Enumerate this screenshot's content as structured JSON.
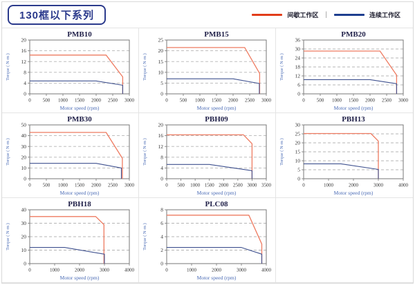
{
  "header": {
    "title": "130框以下系列"
  },
  "legend": {
    "intermittent_label": "间歇工作区",
    "separator": "|",
    "continuous_label": "连续工作区"
  },
  "colors": {
    "accent_navy": "#2b3a8c",
    "legend_red": "#e23c19",
    "legend_blue": "#1e3e8f",
    "chart_red": "#ee7b61",
    "chart_blue": "#3f518f",
    "grid_line": "#b5b5b5",
    "plot_border": "#777777",
    "tick_text": "#333333",
    "axis_label": "#4a6bb5",
    "title_text": "#22224a"
  },
  "chart_data": [
    {
      "id": "pmb10",
      "type": "line",
      "title": "PMB10",
      "xlabel": "Motor speed (rpm)",
      "ylabel": "Torque ( N·m )",
      "xlim": [
        0,
        3000
      ],
      "xticks": [
        0,
        500,
        1000,
        1500,
        2000,
        2500,
        3000
      ],
      "ylim": [
        0,
        20
      ],
      "yticks": [
        0,
        4,
        8,
        12,
        16,
        20
      ],
      "grid": "horizontal-dashed",
      "series": [
        {
          "name": "间歇工作区",
          "color_key": "chart_red",
          "points": [
            [
              0,
              14.4
            ],
            [
              2300,
              14.4
            ],
            [
              2800,
              6.3
            ],
            [
              2800,
              0
            ]
          ]
        },
        {
          "name": "连续工作区",
          "color_key": "chart_blue",
          "points": [
            [
              0,
              4.8
            ],
            [
              2000,
              4.8
            ],
            [
              2800,
              3.2
            ],
            [
              2800,
              0
            ]
          ]
        }
      ]
    },
    {
      "id": "pmb15",
      "type": "line",
      "title": "PMB15",
      "xlabel": "Motor speed (rpm)",
      "ylabel": "Torque ( N·m )",
      "xlim": [
        0,
        3000
      ],
      "xticks": [
        0,
        500,
        1000,
        1500,
        2000,
        2500,
        3000
      ],
      "ylim": [
        0,
        25
      ],
      "yticks": [
        0,
        5,
        10,
        15,
        20,
        25
      ],
      "grid": "horizontal-dashed",
      "series": [
        {
          "name": "间歇工作区",
          "color_key": "chart_red",
          "points": [
            [
              0,
              21.5
            ],
            [
              2350,
              21.5
            ],
            [
              2800,
              9.5
            ],
            [
              2800,
              0
            ]
          ]
        },
        {
          "name": "连续工作区",
          "color_key": "chart_blue",
          "points": [
            [
              0,
              7
            ],
            [
              2000,
              7
            ],
            [
              2790,
              4.8
            ],
            [
              2790,
              0
            ]
          ]
        }
      ]
    },
    {
      "id": "pmb20",
      "type": "line",
      "title": "PMB20",
      "xlabel": "Motor speed (rpm)",
      "ylabel": "Torque ( N·m )",
      "xlim": [
        0,
        3000
      ],
      "xticks": [
        0,
        500,
        1000,
        1500,
        2000,
        2500,
        3000
      ],
      "ylim": [
        0,
        36
      ],
      "yticks": [
        0,
        6,
        12,
        18,
        24,
        30,
        36
      ],
      "grid": "horizontal-dashed",
      "series": [
        {
          "name": "间歇工作区",
          "color_key": "chart_red",
          "points": [
            [
              0,
              28.6
            ],
            [
              2300,
              28.6
            ],
            [
              2800,
              12.5
            ],
            [
              2800,
              0
            ]
          ]
        },
        {
          "name": "连续工作区",
          "color_key": "chart_blue",
          "points": [
            [
              0,
              9.5
            ],
            [
              2000,
              9.5
            ],
            [
              2800,
              6.8
            ],
            [
              2800,
              0
            ]
          ]
        }
      ]
    },
    {
      "id": "pmb30",
      "type": "line",
      "title": "PMB30",
      "xlabel": "Motor speed (rpm)",
      "ylabel": "Torque ( N·m )",
      "xlim": [
        0,
        3000
      ],
      "xticks": [
        0,
        500,
        1000,
        1500,
        2000,
        2500,
        3000
      ],
      "ylim": [
        0,
        50
      ],
      "yticks": [
        0,
        10,
        20,
        30,
        40,
        50
      ],
      "grid": "horizontal-dashed",
      "series": [
        {
          "name": "间歇工作区",
          "color_key": "chart_red",
          "points": [
            [
              0,
              43
            ],
            [
              2300,
              43
            ],
            [
              2790,
              19
            ],
            [
              2790,
              0
            ]
          ]
        },
        {
          "name": "连续工作区",
          "color_key": "chart_blue",
          "points": [
            [
              0,
              14.3
            ],
            [
              2000,
              14.3
            ],
            [
              2760,
              10
            ],
            [
              2760,
              0
            ]
          ]
        }
      ]
    },
    {
      "id": "pbh09",
      "type": "line",
      "title": "PBH09",
      "xlabel": "Motor speed (rpm)",
      "ylabel": "Torque ( N·m )",
      "xlim": [
        0,
        3500
      ],
      "xticks": [
        0,
        500,
        1000,
        1500,
        2000,
        2500,
        3000,
        3500
      ],
      "ylim": [
        0,
        20
      ],
      "yticks": [
        0,
        4,
        8,
        12,
        16,
        20
      ],
      "grid": "horizontal-dashed",
      "series": [
        {
          "name": "间歇工作区",
          "color_key": "chart_red",
          "points": [
            [
              0,
              16.3
            ],
            [
              2700,
              16.3
            ],
            [
              3000,
              13
            ],
            [
              3000,
              0
            ]
          ]
        },
        {
          "name": "连续工作区",
          "color_key": "chart_blue",
          "points": [
            [
              0,
              5.3
            ],
            [
              1500,
              5.3
            ],
            [
              3000,
              3
            ],
            [
              3000,
              0
            ]
          ]
        }
      ]
    },
    {
      "id": "pbh13",
      "type": "line",
      "title": "PBH13",
      "xlabel": "Motor speed (rpm)",
      "ylabel": "Torque ( N·m )",
      "xlim": [
        0,
        4000
      ],
      "xticks": [
        0,
        1000,
        2000,
        3000,
        4000
      ],
      "ylim": [
        0,
        30
      ],
      "yticks": [
        0,
        5,
        10,
        15,
        20,
        25,
        30
      ],
      "grid": "horizontal-dashed",
      "series": [
        {
          "name": "间歇工作区",
          "color_key": "chart_red",
          "points": [
            [
              0,
              25.2
            ],
            [
              2700,
              25.2
            ],
            [
              3000,
              21
            ],
            [
              3000,
              0
            ]
          ]
        },
        {
          "name": "连续工作区",
          "color_key": "chart_blue",
          "points": [
            [
              0,
              8.3
            ],
            [
              1500,
              8.3
            ],
            [
              3000,
              5.2
            ],
            [
              3000,
              0
            ]
          ]
        }
      ]
    },
    {
      "id": "pbh18",
      "type": "line",
      "title": "PBH18",
      "xlabel": "Motor speed (rpm)",
      "ylabel": "Torque ( N·m )",
      "xlim": [
        0,
        4000
      ],
      "xticks": [
        0,
        1000,
        2000,
        3000,
        4000
      ],
      "ylim": [
        0,
        40
      ],
      "yticks": [
        0,
        10,
        20,
        30,
        40
      ],
      "grid": "horizontal-dashed",
      "series": [
        {
          "name": "间歇工作区",
          "color_key": "chart_red",
          "points": [
            [
              0,
              35
            ],
            [
              2650,
              35
            ],
            [
              2980,
              29
            ],
            [
              2980,
              0
            ]
          ]
        },
        {
          "name": "连续工作区",
          "color_key": "chart_blue",
          "points": [
            [
              0,
              12
            ],
            [
              1400,
              12
            ],
            [
              3000,
              7
            ],
            [
              3000,
              0
            ]
          ]
        }
      ]
    },
    {
      "id": "plc08",
      "type": "line",
      "title": "PLC08",
      "xlabel": "Motor speed (rpm)",
      "ylabel": "Torque ( N·m )",
      "xlim": [
        0,
        4000
      ],
      "xticks": [
        0,
        1000,
        2000,
        3000,
        4000
      ],
      "ylim": [
        0,
        8
      ],
      "yticks": [
        0,
        2,
        4,
        6,
        8
      ],
      "grid": "horizontal-dashed",
      "series": [
        {
          "name": "间歇工作区",
          "color_key": "chart_red",
          "points": [
            [
              0,
              7.2
            ],
            [
              3300,
              7.2
            ],
            [
              3820,
              2.9
            ],
            [
              3820,
              0
            ]
          ]
        },
        {
          "name": "连续工作区",
          "color_key": "chart_blue",
          "points": [
            [
              0,
              2.4
            ],
            [
              3000,
              2.4
            ],
            [
              3820,
              1.4
            ],
            [
              3820,
              0
            ]
          ]
        }
      ]
    }
  ]
}
